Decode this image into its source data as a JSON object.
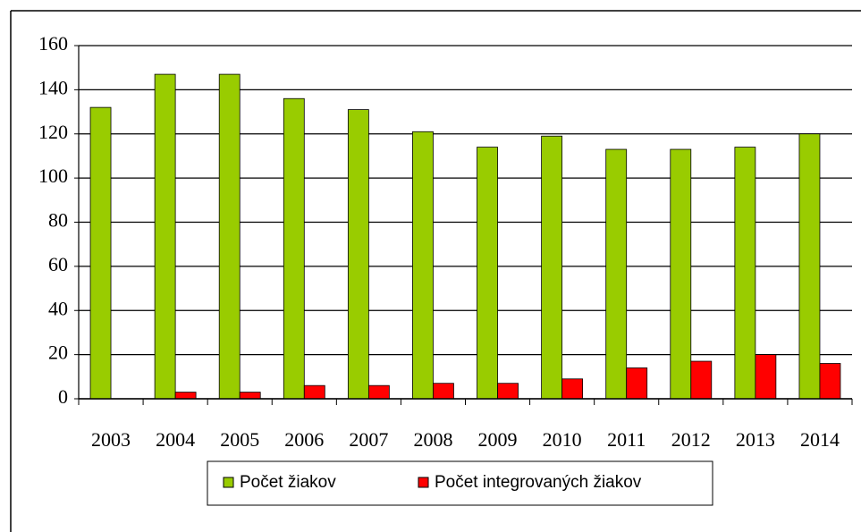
{
  "chart_data": {
    "type": "bar",
    "categories": [
      "2003",
      "2004",
      "2005",
      "2006",
      "2007",
      "2008",
      "2009",
      "2010",
      "2011",
      "2012",
      "2013",
      "2014"
    ],
    "series": [
      {
        "name": "Počet žiakov",
        "color": "#99cc00",
        "values": [
          132,
          147,
          147,
          136,
          131,
          121,
          114,
          119,
          113,
          113,
          114,
          120
        ]
      },
      {
        "name": "Počet integrovaných žiakov",
        "color": "#ff0000",
        "values": [
          0,
          3,
          3,
          6,
          6,
          7,
          7,
          9,
          14,
          17,
          20,
          16
        ]
      }
    ],
    "ylim": [
      0,
      160
    ],
    "yticks": [
      0,
      20,
      40,
      60,
      80,
      100,
      120,
      140,
      160
    ],
    "grid": true,
    "legend": "bottom"
  }
}
